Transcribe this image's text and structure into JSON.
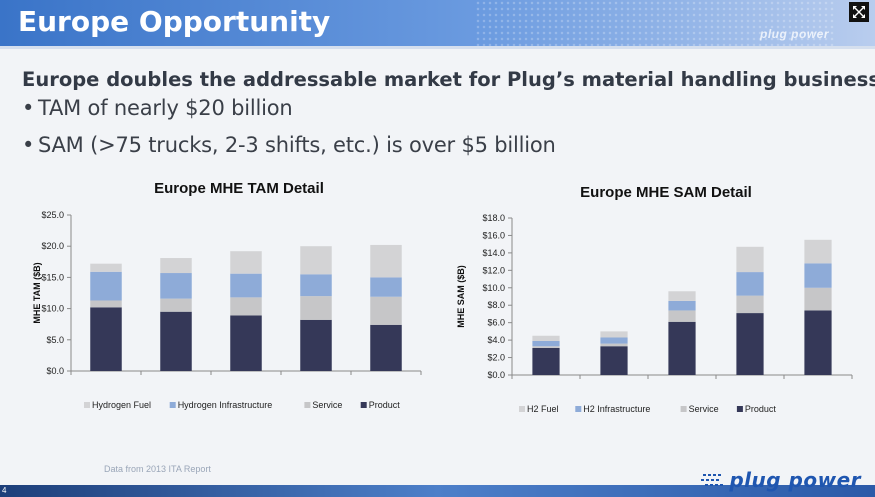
{
  "slide": {
    "title": "Europe Opportunity",
    "title_watermark": "plug power",
    "headline": "Europe doubles the addressable market for Plug’s material handling business:",
    "bullets": [
      "TAM of nearly $20 billion",
      "SAM (>75 trucks, 2-3 shifts, etc.) is over $5 billion"
    ],
    "bullet_symbol": "•",
    "source_note": "Data from 2013 ITA Report",
    "page_number": "4",
    "logo_text": "plug power"
  },
  "colors": {
    "hydrogen_fuel": "#d3d3d5",
    "infrastructure": "#8eabd8",
    "service": "#c6c6c8",
    "product": "#353858",
    "title_bar": "#3a74c8",
    "logo": "#1f56b0"
  },
  "chart_data": [
    {
      "type": "bar",
      "stacked": true,
      "title": "Europe MHE TAM Detail",
      "ylabel": "MHE TAM ($B)",
      "xlabel": "",
      "ylim": [
        0,
        25
      ],
      "yticks": [
        0,
        5,
        10,
        15,
        20,
        25
      ],
      "ytick_labels": [
        "$0.0",
        "$5.0",
        "$10.0",
        "$15.0",
        "$20.0",
        "$25.0"
      ],
      "categories": [
        "",
        "",
        "",
        "",
        ""
      ],
      "legend_position": "bottom",
      "series": [
        {
          "name": "Product",
          "color": "#353858",
          "values": [
            10.2,
            9.5,
            8.9,
            8.2,
            7.4
          ]
        },
        {
          "name": "Service",
          "color": "#c6c6c8",
          "values": [
            1.1,
            2.1,
            2.9,
            3.8,
            4.5
          ]
        },
        {
          "name": "Hydrogen Infrastructure",
          "color": "#8eabd8",
          "values": [
            4.6,
            4.1,
            3.8,
            3.5,
            3.1
          ]
        },
        {
          "name": "Hydrogen Fuel",
          "color": "#d3d3d5",
          "values": [
            1.3,
            2.4,
            3.6,
            4.5,
            5.2
          ]
        }
      ],
      "legend_order": [
        "Hydrogen Fuel",
        "Hydrogen Infrastructure",
        "Service",
        "Product"
      ]
    },
    {
      "type": "bar",
      "stacked": true,
      "title": "Europe MHE SAM Detail",
      "ylabel": "MHE SAM ($B)",
      "xlabel": "",
      "ylim": [
        0,
        18
      ],
      "yticks": [
        0,
        2,
        4,
        6,
        8,
        10,
        12,
        14,
        16,
        18
      ],
      "ytick_labels": [
        "$0.0",
        "$2.0",
        "$4.0",
        "$6.0",
        "$8.0",
        "$10.0",
        "$12.0",
        "$14.0",
        "$16.0",
        "$18.0"
      ],
      "categories": [
        "",
        "",
        "",
        "",
        ""
      ],
      "legend_position": "bottom",
      "series": [
        {
          "name": "Product",
          "color": "#353858",
          "values": [
            3.1,
            3.3,
            6.1,
            7.1,
            7.4
          ]
        },
        {
          "name": "Service",
          "color": "#c6c6c8",
          "values": [
            0.2,
            0.3,
            1.3,
            2.0,
            2.6
          ]
        },
        {
          "name": "H2 Infrastructure",
          "color": "#8eabd8",
          "values": [
            0.6,
            0.7,
            1.1,
            2.7,
            2.8
          ]
        },
        {
          "name": "H2 Fuel",
          "color": "#d3d3d5",
          "values": [
            0.6,
            0.7,
            1.1,
            2.9,
            2.7
          ]
        }
      ],
      "legend_order": [
        "H2 Fuel",
        "H2 Infrastructure",
        "Service",
        "Product"
      ]
    }
  ]
}
